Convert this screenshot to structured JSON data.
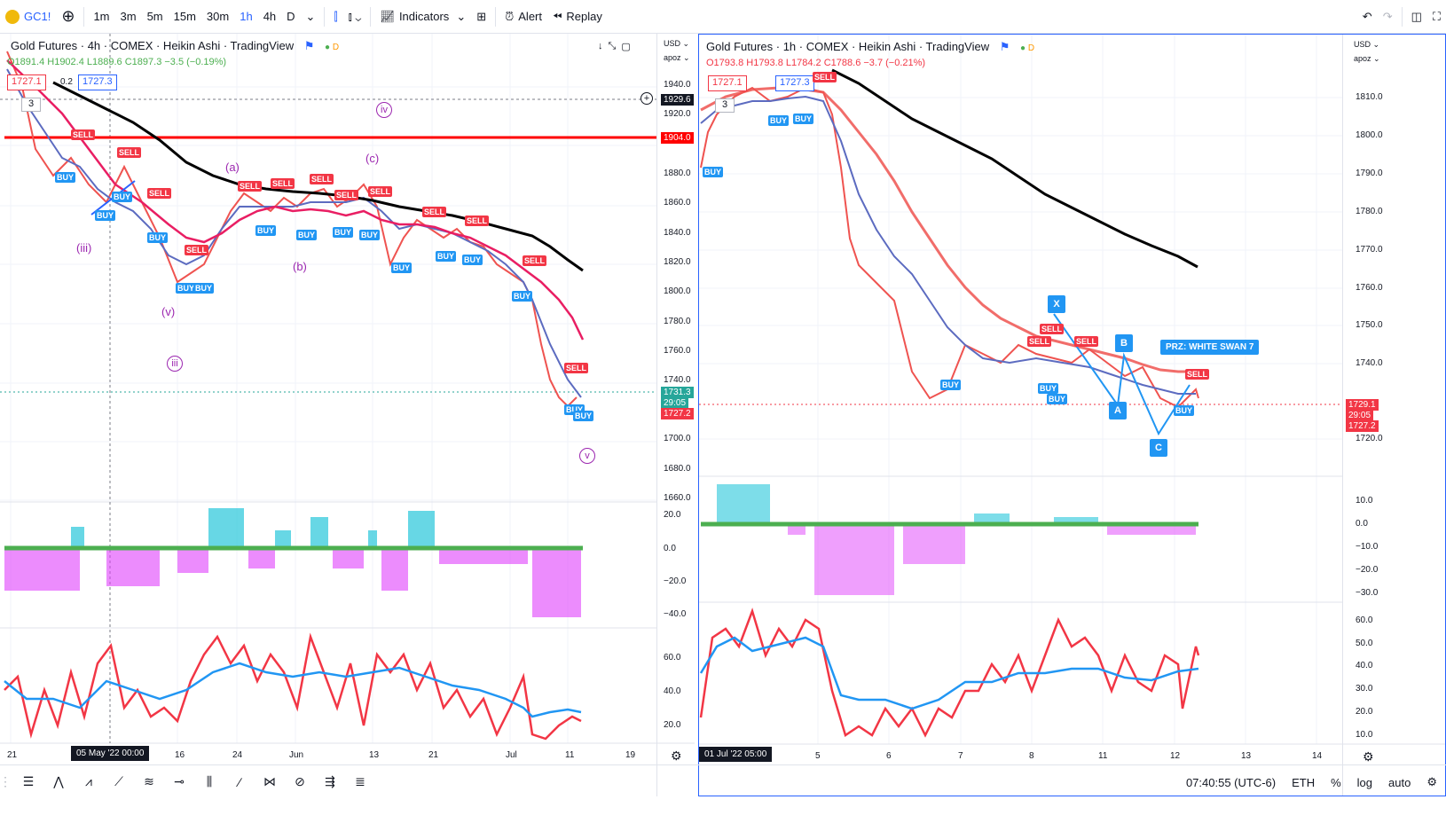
{
  "toolbar": {
    "symbol": "GC1!",
    "intervals": [
      "1m",
      "3m",
      "5m",
      "15m",
      "30m",
      "1h",
      "4h",
      "D"
    ],
    "active_interval": "1h",
    "indicators": "Indicators",
    "alert": "Alert",
    "replay": "Replay"
  },
  "left_chart": {
    "title": "Gold Futures · 4h · COMEX · Heikin Ashi · TradingView",
    "ohlc": "O1891.4 H1902.4 L1889.6 C1897.3 −3.5 (−0.19%)",
    "bid": "1727.1",
    "spread": "0.2",
    "ask": "1727.3",
    "badge": "3",
    "currency": "USD",
    "apoz": "apoz",
    "y_labels": [
      "1940.0",
      "1920.0",
      "1880.0",
      "1860.0",
      "1840.0",
      "1820.0",
      "1800.0",
      "1780.0",
      "1760.0",
      "1740.0",
      "1700.0",
      "1680.0",
      "1660.0"
    ],
    "price_tags": {
      "crosshair": "1929.6",
      "line": "1904.0",
      "last": "1731.3",
      "countdown": "29:05",
      "low": "1727.2"
    },
    "osc_labels": [
      "20.0",
      "0.0",
      "−20.0",
      "−40.0"
    ],
    "rsi_labels": [
      "60.0",
      "40.0",
      "20.0"
    ],
    "x_labels": [
      "21",
      "16",
      "24",
      "Jun",
      "13",
      "21",
      "Jul",
      "11",
      "19"
    ],
    "x_highlight": "05 May '22   00:00",
    "waves": [
      "(iii)",
      "(v)",
      "iii",
      "(a)",
      "(b)",
      "(c)",
      "iv",
      "v"
    ],
    "signals": [
      "BUY",
      "SELL"
    ]
  },
  "right_chart": {
    "title": "Gold Futures · 1h · COMEX · Heikin Ashi · TradingView",
    "ohlc": "O1793.8 H1793.8 L1784.2 C1788.6 −3.7 (−0.21%)",
    "bid": "1727.1",
    "ask": "1727.3",
    "badge": "3",
    "currency": "USD",
    "apoz": "apoz",
    "y_labels": [
      "1810.0",
      "1800.0",
      "1790.0",
      "1780.0",
      "1770.0",
      "1760.0",
      "1750.0",
      "1740.0",
      "1720.0"
    ],
    "price_tags": {
      "last": "1729.1",
      "countdown": "29:05",
      "low": "1727.2"
    },
    "osc_labels": [
      "10.0",
      "0.0",
      "−10.0",
      "−20.0",
      "−30.0"
    ],
    "rsi_labels": [
      "60.0",
      "50.0",
      "40.0",
      "30.0",
      "20.0",
      "10.0"
    ],
    "x_labels": [
      "5",
      "6",
      "7",
      "8",
      "11",
      "12",
      "13",
      "14"
    ],
    "x_highlight": "01 Jul '22   05:00",
    "points": [
      "X",
      "A",
      "B",
      "C"
    ],
    "prz": "PRZ: WHITE SWAN 7"
  },
  "status": {
    "time": "07:40:55 (UTC-6)",
    "session": "ETH",
    "percent": "%",
    "log": "log",
    "auto": "auto"
  },
  "colors": {
    "buy": "#2196f3",
    "sell": "#f23645",
    "wave": "#9c27b0",
    "ma_long": "#000000"
  }
}
